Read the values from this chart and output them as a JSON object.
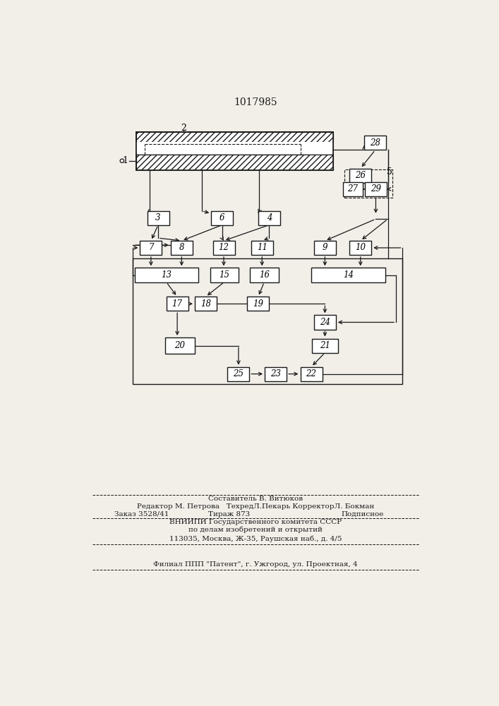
{
  "title": "1017985",
  "bg_color": "#f2efe9",
  "line_color": "#1a1a1a",
  "box_color": "#ffffff",
  "box_edge": "#1a1a1a",
  "footer_lines": [
    "Составитель В. Витюков",
    "Редактор М. Петрова   ТехредЛ.Пекарь КорректорЛ. Бокман",
    "Заказ 3528/41",
    "Тираж 873",
    "Подписное",
    "ВНИИПИ Государственного комитета СССР",
    "по делам изобретений и открытий",
    "113035, Москва, Ж-35, Раушская наб., д. 4/5",
    "Филиал ППП \"Патент\", г. Ужгород, ул. Проектная, 4"
  ]
}
